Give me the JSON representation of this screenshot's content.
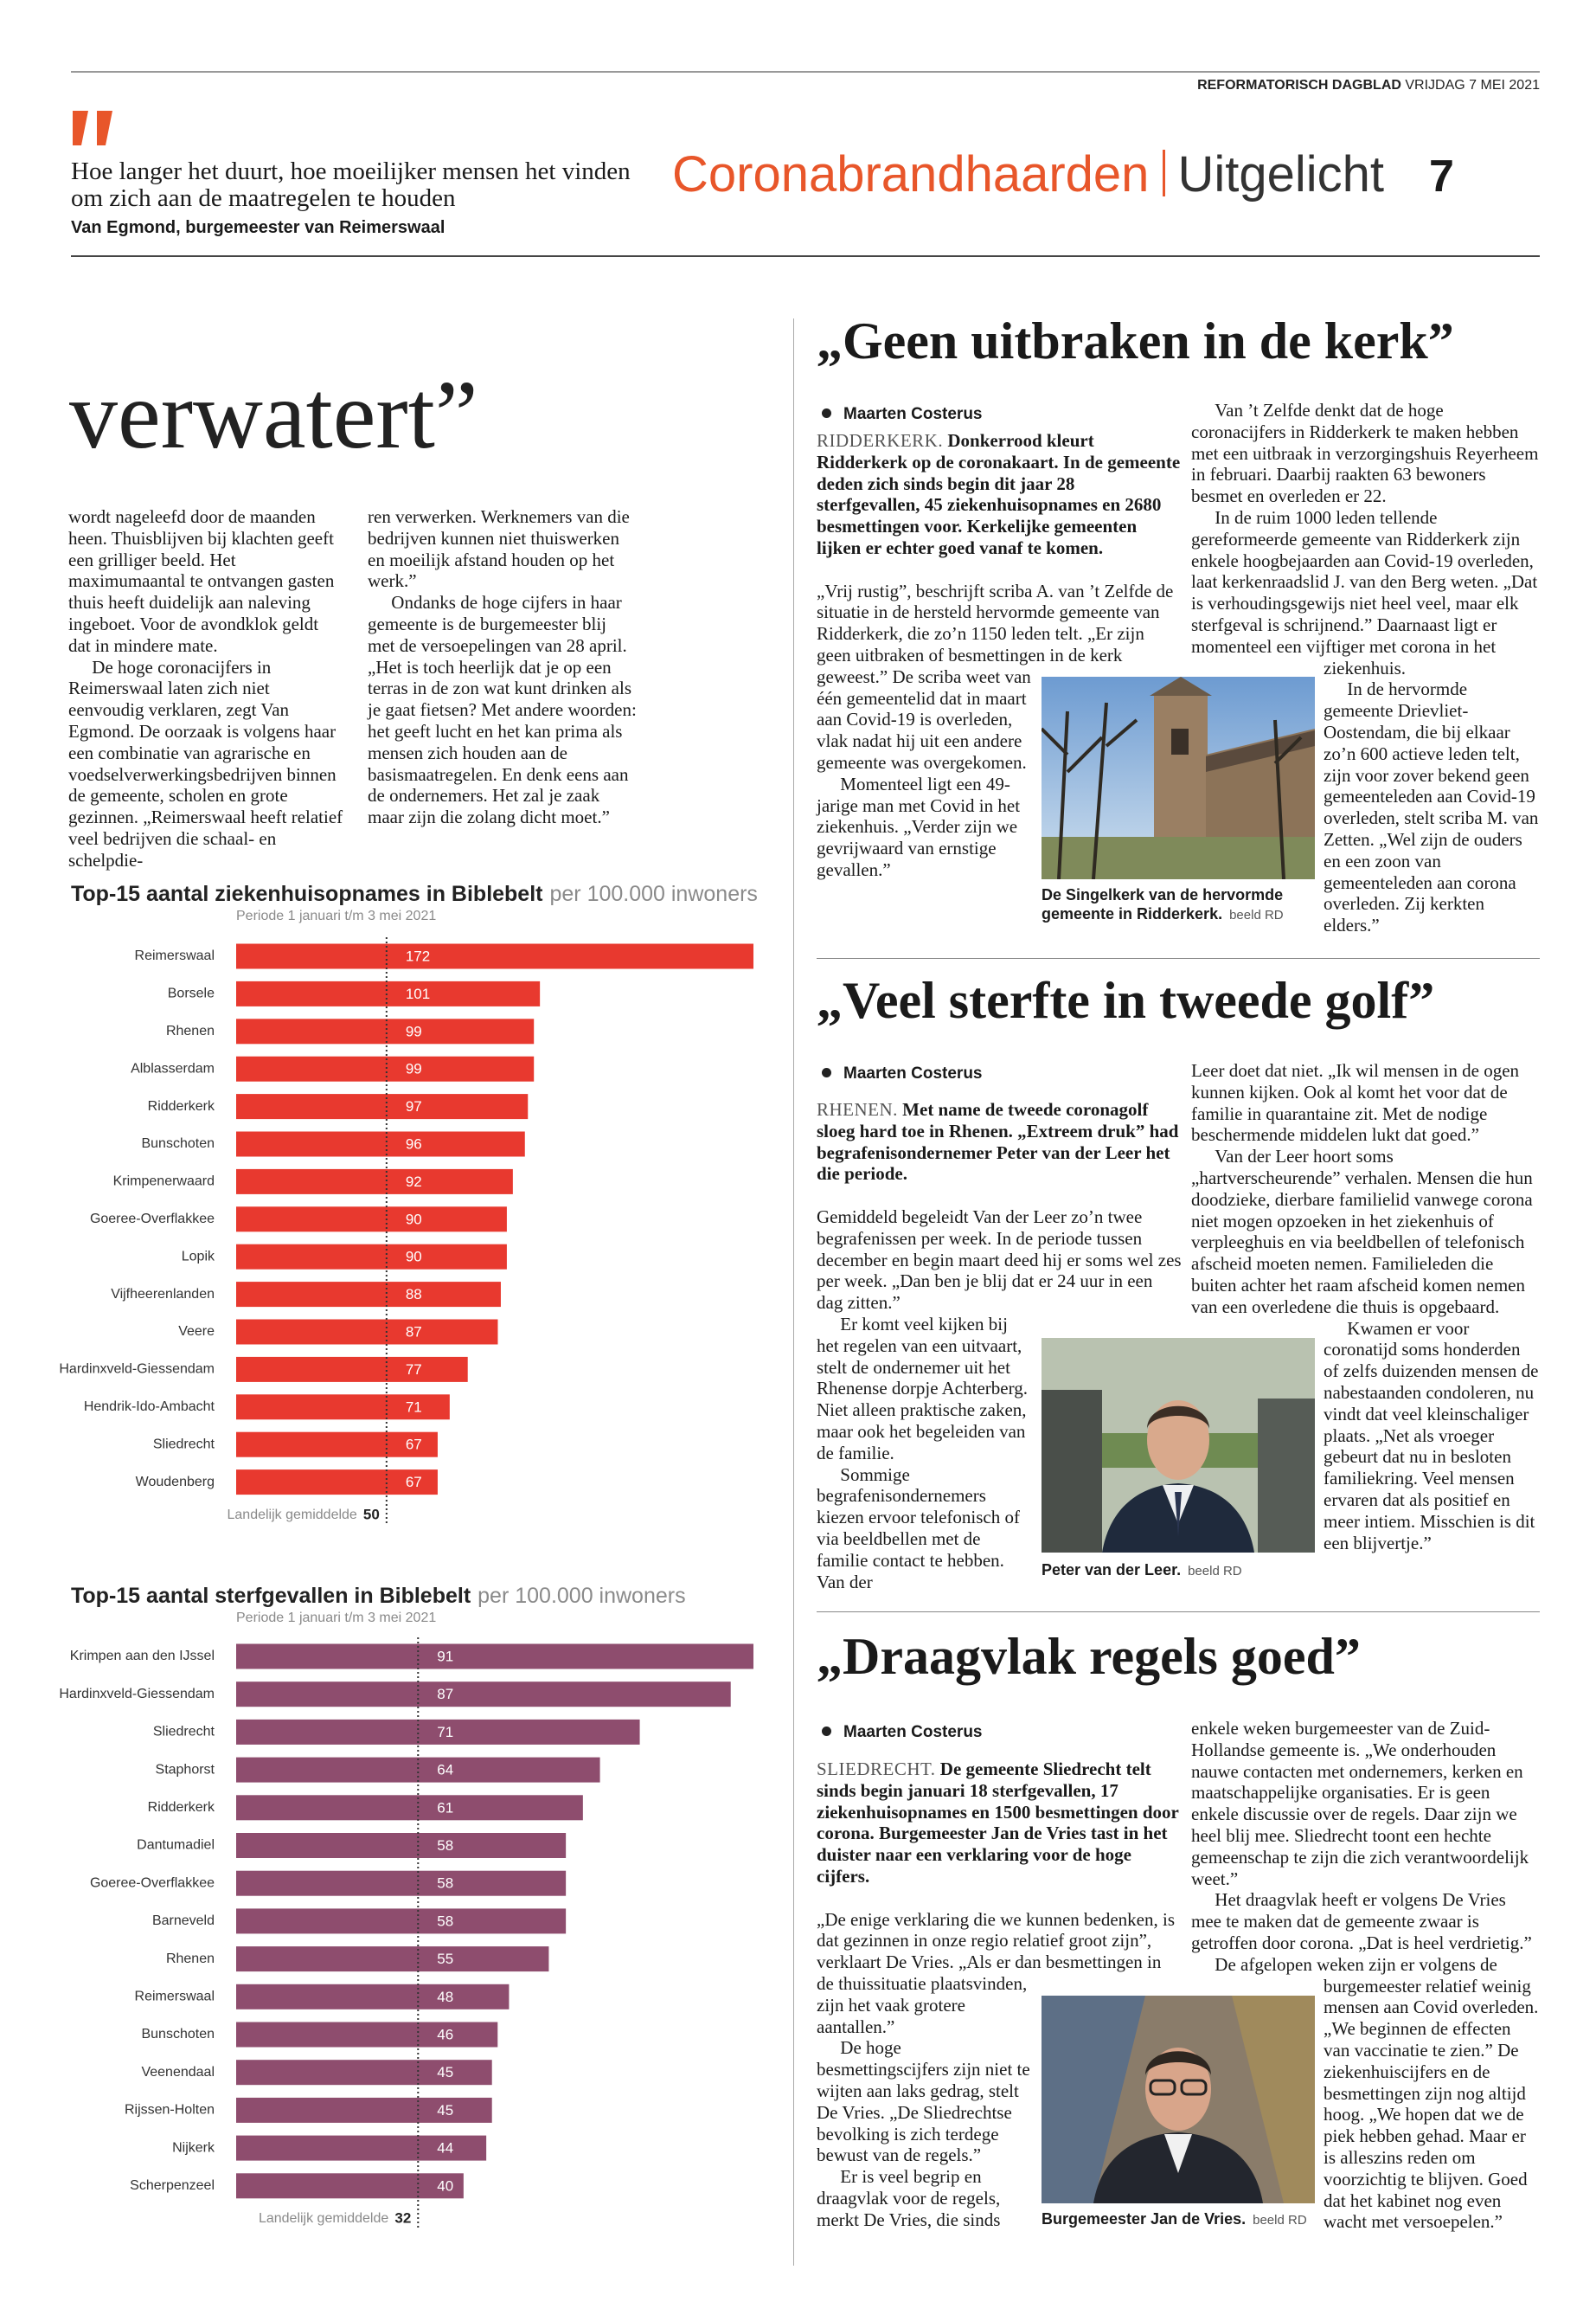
{
  "masthead": {
    "paper": "REFORMATORISCH DAGBLAD",
    "date": "VRIJDAG 7 MEI 2021"
  },
  "section": {
    "name": "Coronabrandhaarden",
    "sub": "Uitgelicht",
    "page": "7"
  },
  "quote": {
    "text": "Hoe langer het duurt, hoe moeilijker mensen het vinden om zich aan de maatregelen te houden",
    "attribution": "Van Egmond, burgemeester van Reimerswaal"
  },
  "left_article": {
    "headline": "verwatert”",
    "columns": [
      [
        "wordt nageleefd door de maanden heen. Thuisblijven bij klachten geeft een grilliger beeld. Het maximumaantal te ontvangen gasten thuis heeft duidelijk aan naleving ingeboet. Voor de avondklok geldt dat in mindere mate.",
        "De hoge coronacijfers in Reimerswaal laten zich niet eenvoudig verklaren, zegt Van Egmond. De oorzaak is volgens haar een combinatie van agrarische en voedselverwerkingsbedrijven binnen de gemeente, scholen en grote gezinnen. „Reimerswaal heeft relatief veel bedrijven die schaal- en schelpdie-"
      ],
      [
        "ren verwerken. Werknemers van die bedrijven kunnen niet thuiswerken en moeilijk afstand houden op het werk.”",
        "Ondanks de hoge cijfers in haar gemeente is de burgemeester blij met de versoepelingen van 28 april. „Het is toch heerlijk dat je op een terras in de zon wat kunt drinken als je gaat fietsen? Met andere woorden: het geeft lucht en het kan prima als mensen zich houden aan de basismaatregelen. En denk eens aan de ondernemers. Het zal je zaak maar zijn die zolang dicht moet.”"
      ]
    ]
  },
  "chart_data": [
    {
      "type": "bar",
      "orientation": "horizontal",
      "title": "Top-15 aantal ziekenhuisopnames in Biblebelt",
      "title_suffix": "per 100.000 inwoners",
      "subtitle": "Periode 1 januari t/m 3 mei 2021",
      "categories": [
        "Reimerswaal",
        "Borsele",
        "Rhenen",
        "Alblasserdam",
        "Ridderkerk",
        "Bunschoten",
        "Krimpenerwaard",
        "Goeree-Overflakkee",
        "Lopik",
        "Vijfheerenlanden",
        "Veere",
        "Hardinxveld-Giessendam",
        "Hendrik-Ido-Ambacht",
        "Sliedrecht",
        "Woudenberg"
      ],
      "values": [
        172,
        101,
        99,
        99,
        97,
        96,
        92,
        90,
        90,
        88,
        87,
        77,
        71,
        67,
        67
      ],
      "color": "#e8392f",
      "xlim": [
        0,
        172
      ],
      "reference": {
        "label": "Landelijk gemiddelde",
        "value": 50
      }
    },
    {
      "type": "bar",
      "orientation": "horizontal",
      "title": "Top-15 aantal sterfgevallen in Biblebelt",
      "title_suffix": "per 100.000 inwoners",
      "subtitle": "Periode 1 januari t/m 3 mei 2021",
      "categories": [
        "Krimpen aan den IJssel",
        "Hardinxveld-Giessendam",
        "Sliedrecht",
        "Staphorst",
        "Ridderkerk",
        "Dantumadiel",
        "Goeree-Overflakkee",
        "Barneveld",
        "Rhenen",
        "Reimerswaal",
        "Bunschoten",
        "Veenendaal",
        "Rijssen-Holten",
        "Nijkerk",
        "Scherpenzeel"
      ],
      "values": [
        91,
        87,
        71,
        64,
        61,
        58,
        58,
        58,
        55,
        48,
        46,
        45,
        45,
        44,
        40
      ],
      "color": "#8e4d6e",
      "xlim": [
        0,
        91
      ],
      "reference": {
        "label": "Landelijk gemiddelde",
        "value": 32
      }
    }
  ],
  "articles": [
    {
      "headline": "„Geen uitbraken in de kerk”",
      "byline": "Maarten Costerus",
      "dateline": "RIDDERKERK.",
      "lead": "Donkerrood kleurt Ridderkerk op de coronakaart. In de gemeente deden zich sinds begin dit jaar 28 sterfgevallen, 45 ziekenhuisopnames en 2680 besmettingen voor. Kerkelijke gemeenten lijken er echter goed vanaf te komen.",
      "columns": [
        [
          "„Vrij rustig”, beschrijft scriba A. van ’t Zelfde de situatie in de hersteld hervormde gemeente van Ridderkerk, die zo’n 1150 leden telt. „Er zijn geen uitbraken of besmettingen in de kerk geweest.” De scriba weet van één gemeentelid dat in maart aan Covid-19 is overleden, vlak nadat hij uit een andere gemeente was overgekomen.",
          "Momenteel ligt een 49-jarige man met Covid in het ziekenhuis. „Verder zijn we gevrijwaard van ernstige gevallen.”"
        ],
        [
          "Van ’t Zelfde denkt dat de hoge coronacijfers in Ridderkerk te maken hebben met een uitbraak in verzorgingshuis Reyerheem in februari. Daarbij raakten 63 bewoners besmet en overleden er 22.",
          "In de ruim 1000 leden tellende gereformeerde gemeente van Ridderkerk zijn enkele hoogbejaarden aan Covid-19 overleden, laat kerkenraadslid J. van den Berg weten. „Dat is verhoudingsgewijs niet heel veel, maar elk sterfgeval is schrijnend.” Daarnaast ligt er momenteel een vijftiger met corona in het ziekenhuis.",
          "In de hervormde gemeente Drievliet-Oostendam, die bij elkaar zo’n 600 actieve leden telt, zijn voor zover bekend geen gemeenteleden aan Covid-19 overleden, stelt scriba M. van Zetten. „Wel zijn de ouders en een zoon van gemeenteleden aan corona overleden. Zij kerkten elders.”"
        ]
      ],
      "caption": "De Singelkerk van de hervormde gemeente in Ridderkerk.",
      "credit": "beeld RD"
    },
    {
      "headline": "„Veel sterfte in tweede golf”",
      "byline": "Maarten Costerus",
      "dateline": "RHENEN.",
      "lead": "Met name de tweede coronagolf sloeg hard toe in Rhenen. „Extreem druk” had begrafenisondernemer Peter van der Leer het die periode.",
      "columns": [
        [
          "Gemiddeld begeleidt Van der Leer zo’n twee begrafenissen per week. In de periode tussen december en begin maart deed hij er soms wel zes per week. „Dan ben je blij dat er 24 uur in een dag zitten.”",
          "Er komt veel kijken bij het regelen van een uitvaart, stelt de ondernemer uit het Rhenense dorpje Achterberg. Niet alleen praktische zaken, maar ook het begeleiden van de familie.",
          "Sommige begrafenisondernemers kiezen ervoor telefonisch of via beeldbellen met de familie contact te hebben. Van der"
        ],
        [
          "Leer doet dat niet. „Ik wil mensen in de ogen kunnen kijken. Ook al komt het voor dat de familie in quarantaine zit. Met de nodige beschermende middelen lukt dat goed.”",
          "Van der Leer hoort soms „hartverscheurende” verhalen. Mensen die hun doodzieke, dierbare familielid vanwege corona niet mogen opzoeken in het ziekenhuis of verpleeghuis en via beeldbellen of telefonisch afscheid moeten nemen. Familieleden die buiten achter het raam afscheid komen nemen van een overledene die thuis is opgebaard.",
          "Kwamen er voor coronatijd soms honderden of zelfs duizenden mensen de nabestaanden condoleren, nu vindt dat veel kleinschaliger plaats. „Net als vroeger gebeurt dat nu in besloten familiekring. Veel mensen ervaren dat als positief en meer intiem. Misschien is dit een blijvertje.”"
        ]
      ],
      "caption": "Peter van der Leer.",
      "credit": "beeld RD"
    },
    {
      "headline": "„Draagvlak regels goed”",
      "byline": "Maarten Costerus",
      "dateline": "SLIEDRECHT.",
      "lead": "De gemeente Sliedrecht telt sinds begin januari 18 sterfgevallen, 17 ziekenhuisopnames en 1500 besmettingen door corona. Burgemeester Jan de Vries tast in het duister naar een verklaring voor de hoge cijfers.",
      "columns": [
        [
          "„De enige verklaring die we kunnen bedenken, is dat gezinnen in onze regio relatief groot zijn”, verklaart De Vries. „Als er dan besmettingen in de thuissituatie plaatsvinden, zijn het vaak grotere aantallen.”",
          "De hoge besmettingscijfers zijn niet te wijten aan laks gedrag, stelt De Vries. „De Sliedrechtse bevolking is zich terdege bewust van de regels.”",
          "Er is veel begrip en draagvlak voor de regels, merkt De Vries, die sinds"
        ],
        [
          "enkele weken burgemeester van de Zuid-Hollandse gemeente is. „We onderhouden nauwe contacten met ondernemers, kerken en maatschappelijke organisaties. Er is geen enkele discussie over de regels. Daar zijn we heel blij mee. Sliedrecht toont een hechte gemeenschap te zijn die zich verantwoordelijk weet.”",
          "Het draagvlak heeft er volgens De Vries mee te maken dat de gemeente zwaar is getroffen door corona. „Dat is heel verdrietig.”",
          "De afgelopen weken zijn er volgens de burgemeester relatief weinig mensen aan Covid overleden. „We beginnen de effecten van vaccinatie te zien.” De ziekenhuiscijfers en de besmettingen zijn nog altijd hoog. „We hopen dat we de piek hebben gehad. Maar er is alleszins reden om voorzichtig te blijven. Goed dat het kabinet nog even wacht met versoepelen.”"
        ]
      ],
      "caption": "Burgemeester Jan de Vries.",
      "credit": "beeld RD"
    }
  ]
}
